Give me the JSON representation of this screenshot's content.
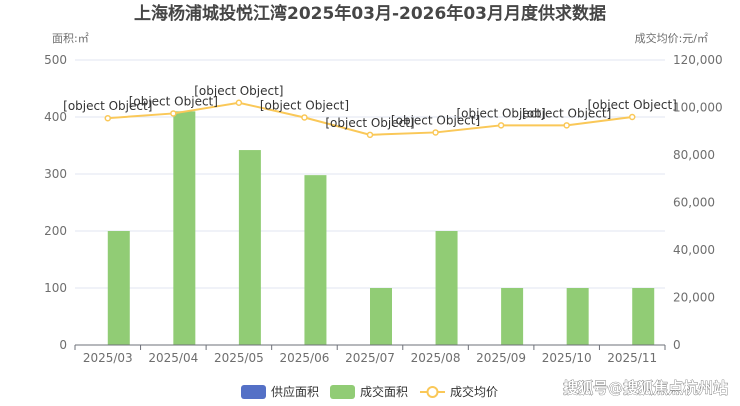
{
  "chart_data": {
    "type": "bar",
    "title": "上海杨浦城投悦江湾2025年03月-2026年03月月度供求数据",
    "ylabel_left": "面积:㎡",
    "ylabel_right": "成交均价:元/㎡",
    "categories": [
      "2025/03",
      "2025/04",
      "2025/05",
      "2025/06",
      "2025/07",
      "2025/08",
      "2025/09",
      "2025/10",
      "2025/11"
    ],
    "ylim_left": [
      0,
      500
    ],
    "yticks_left": [
      "0",
      "100",
      "200",
      "300",
      "400",
      "500"
    ],
    "ylim_right": [
      0,
      120000
    ],
    "yticks_right": [
      "0",
      "20,000",
      "40,000",
      "60,000",
      "80,000",
      "100,000",
      "120,000"
    ],
    "grid": true,
    "legend_position": "bottom",
    "series": [
      {
        "name": "供应面积",
        "kind": "bar",
        "axis": "left",
        "color": "#5470c6",
        "values": [
          0,
          0,
          0,
          0,
          0,
          0,
          0,
          0,
          0
        ]
      },
      {
        "name": "成交面积",
        "kind": "bar",
        "axis": "left",
        "color": "#91cc75",
        "values": [
          200,
          410,
          342,
          298,
          100,
          200,
          100,
          100,
          100
        ]
      },
      {
        "name": "成交均价",
        "kind": "line",
        "axis": "right",
        "color": "#fac858",
        "values": [
          95500,
          97500,
          102000,
          95800,
          88500,
          89500,
          92500,
          92500,
          96000
        ]
      }
    ],
    "point_labels": [
      "[object Object]",
      "[object Object]",
      "[object Object]",
      "[object Object]",
      "[object Object]",
      "[object Object]",
      "[object Object]",
      "[object Object]",
      "[object Object]"
    ]
  },
  "watermark": "搜狐号@搜狐焦点杭州站"
}
